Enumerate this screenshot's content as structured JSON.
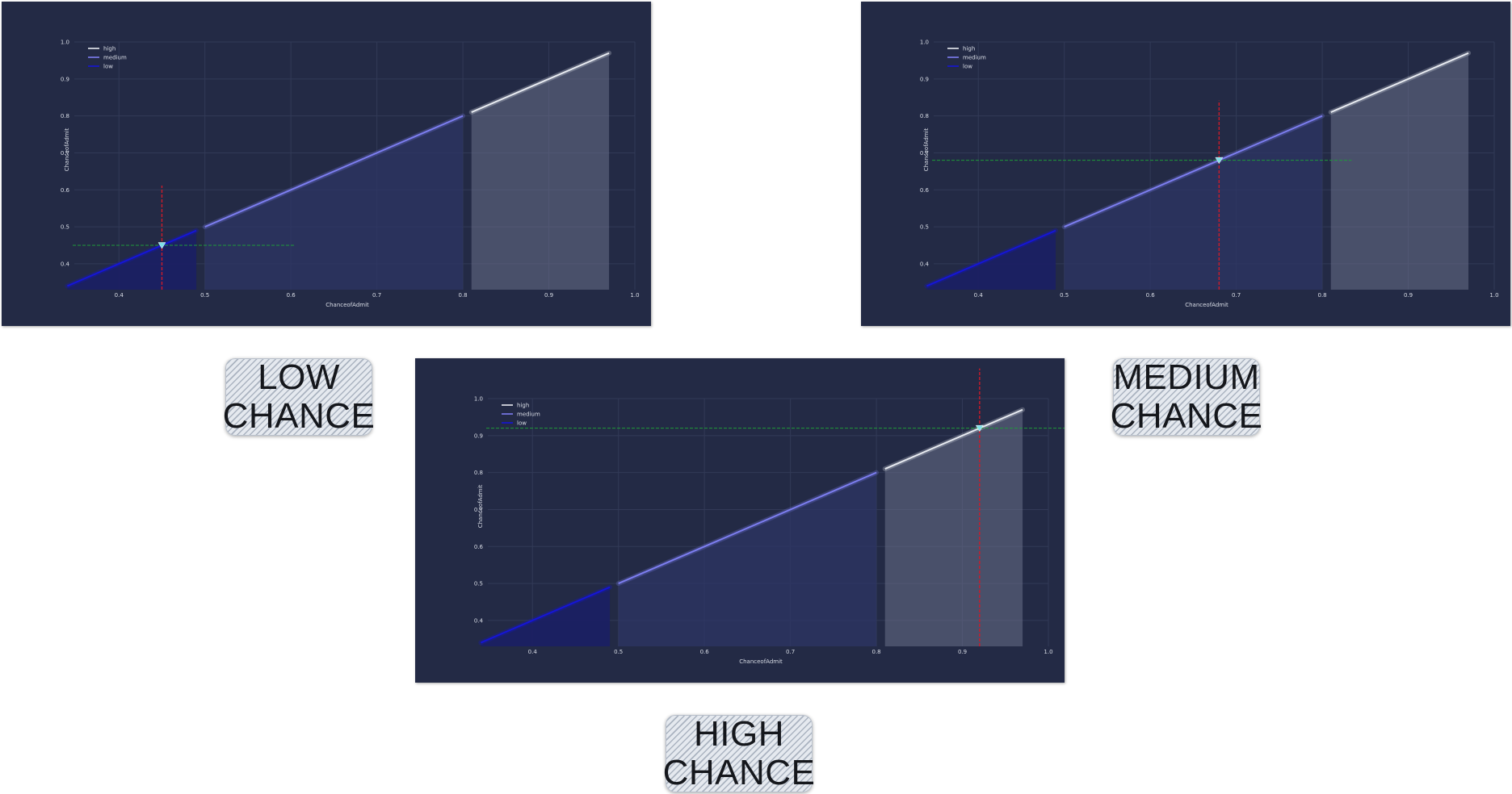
{
  "chart_data": [
    {
      "type": "area",
      "xlabel": "ChanceofAdmit",
      "ylabel": "ChanceofAdmit",
      "xlim": [
        0.34,
        0.97
      ],
      "ylim": [
        0.34,
        0.97
      ],
      "xticks": [
        "0.4",
        "0.5",
        "0.6",
        "0.7",
        "0.8",
        "0.9",
        "1.0"
      ],
      "yticks": [
        "0.4",
        "0.5",
        "0.6",
        "0.7",
        "0.8",
        "0.9",
        "1.0"
      ],
      "grid": true,
      "legend_position": "top-left",
      "series": [
        {
          "name": "high",
          "x": [
            0.81,
            0.97
          ],
          "y": [
            0.81,
            0.97
          ],
          "color": "#e9ecf2"
        },
        {
          "name": "medium",
          "x": [
            0.5,
            0.8
          ],
          "y": [
            0.5,
            0.8
          ],
          "color": "#7d7ef0"
        },
        {
          "name": "low",
          "x": [
            0.34,
            0.49
          ],
          "y": [
            0.34,
            0.49
          ],
          "color": "#1515d8"
        }
      ],
      "marker": {
        "x": 0.45,
        "y": 0.45
      },
      "label": [
        "LOW",
        "CHANCE"
      ]
    },
    {
      "type": "area",
      "xlabel": "ChanceofAdmit",
      "ylabel": "ChanceofAdmit",
      "xlim": [
        0.34,
        0.97
      ],
      "ylim": [
        0.34,
        0.97
      ],
      "xticks": [
        "0.4",
        "0.5",
        "0.6",
        "0.7",
        "0.8",
        "0.9",
        "1.0"
      ],
      "yticks": [
        "0.4",
        "0.5",
        "0.6",
        "0.7",
        "0.8",
        "0.9",
        "1.0"
      ],
      "grid": true,
      "legend_position": "top-left",
      "series": [
        {
          "name": "high",
          "x": [
            0.81,
            0.97
          ],
          "y": [
            0.81,
            0.97
          ],
          "color": "#e9ecf2"
        },
        {
          "name": "medium",
          "x": [
            0.5,
            0.8
          ],
          "y": [
            0.5,
            0.8
          ],
          "color": "#7d7ef0"
        },
        {
          "name": "low",
          "x": [
            0.34,
            0.49
          ],
          "y": [
            0.34,
            0.49
          ],
          "color": "#1515d8"
        }
      ],
      "marker": {
        "x": 0.68,
        "y": 0.68
      },
      "label": [
        "MEDIUM",
        "CHANCE"
      ]
    },
    {
      "type": "area",
      "xlabel": "ChanceofAdmit",
      "ylabel": "ChanceofAdmit",
      "xlim": [
        0.34,
        0.97
      ],
      "ylim": [
        0.34,
        0.97
      ],
      "xticks": [
        "0.4",
        "0.5",
        "0.6",
        "0.7",
        "0.8",
        "0.9",
        "1.0"
      ],
      "yticks": [
        "0.4",
        "0.5",
        "0.6",
        "0.7",
        "0.8",
        "0.9",
        "1.0"
      ],
      "grid": true,
      "legend_position": "top-left",
      "series": [
        {
          "name": "high",
          "x": [
            0.81,
            0.97
          ],
          "y": [
            0.81,
            0.97
          ],
          "color": "#e9ecf2"
        },
        {
          "name": "medium",
          "x": [
            0.5,
            0.8
          ],
          "y": [
            0.5,
            0.8
          ],
          "color": "#7d7ef0"
        },
        {
          "name": "low",
          "x": [
            0.34,
            0.49
          ],
          "y": [
            0.34,
            0.49
          ],
          "color": "#1515d8"
        }
      ],
      "marker": {
        "x": 0.92,
        "y": 0.92
      },
      "label": [
        "HIGH",
        "CHANCE"
      ]
    }
  ],
  "colors": {
    "panel_bg": "#232a45",
    "grid": "#323a57",
    "tick_text": "#d9dde6",
    "marker_h_line": "#1f9a3a",
    "marker_v_line": "#cc1b2a",
    "marker": "#7fe0e8"
  }
}
